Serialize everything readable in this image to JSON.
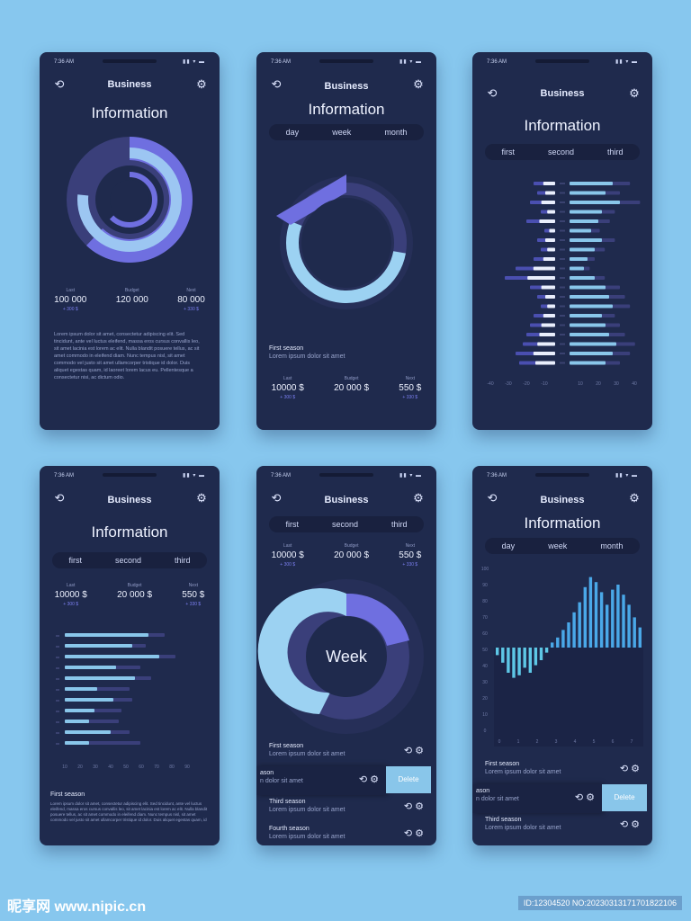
{
  "status": {
    "time": "7:36 AM",
    "icons": "▮▮ ▾ ▬"
  },
  "header": {
    "title": "Business"
  },
  "common": {
    "title": "Information"
  },
  "stats_a": {
    "labels": [
      "Last",
      "Budget",
      "Next"
    ],
    "values": [
      "100 000",
      "120 000",
      "80 000"
    ],
    "changes": [
      "+ 300 $",
      "",
      "+ 330 $"
    ]
  },
  "stats_b": {
    "labels": [
      "Last",
      "Budget",
      "Next"
    ],
    "values": [
      "10000 $",
      "20 000 $",
      "550 $"
    ],
    "changes": [
      "+ 300 $",
      "",
      "+ 330 $"
    ]
  },
  "tabs_time": [
    "day",
    "week",
    "month"
  ],
  "tabs_order": [
    "first",
    "second",
    "third"
  ],
  "paragraph": "Lorem ipsum dolor sit amet, consectetur adipiscing elit. Sed tincidunt, ante vel luctus eleifend, massa eros cursus convallis leo, sit amet lacinia est lorem ac elit. Nulla blandit posuere tellus, ac sit amet commodo in eleifend diam. Nunc tempus nisl, sit amet commodo vel justo sit amet ullamcorper tristique id dolor. Duis aliquet egestas quam, id laoreet lorem lacus eu. Pellentesque a consectetur nisi, ac dictum odio.",
  "season": {
    "first": "First season",
    "second": "Second season",
    "third": "Third season",
    "fourth": "Fourth season",
    "sub": "Lorem ipsum dolor sit amet",
    "swiped_title": "ason",
    "swiped_sub": "n dolor sit amet",
    "swiped_sub2": "n dolor sit amet"
  },
  "delete_label": "Delete",
  "donut_center": "Week",
  "colors": {
    "bg": "#87c7ee",
    "phone": "#1f2a4d",
    "accent_purple": "#6f6fe0",
    "accent_light": "#89c6ea",
    "dark_segment": "#3a3f7a"
  },
  "icons": {
    "history": "history-icon",
    "settings": "gear-icon"
  },
  "watermark": {
    "left": "昵享网 www.nipic.cn",
    "right": "ID:12304520 NO:20230313171701822106"
  },
  "chart_data": [
    {
      "type": "bar",
      "subtype": "diverging-horizontal",
      "title": "",
      "x_ticks_left": [
        "-40",
        "-30",
        "-20",
        "-10"
      ],
      "x_ticks_right": [
        "10",
        "20",
        "30",
        "40"
      ],
      "series": [
        {
          "values_left": [
            -12,
            -10,
            -14,
            -8,
            -16,
            -6,
            -10,
            -8,
            -12,
            -22,
            -28,
            -14,
            -10,
            -8,
            -12,
            -14,
            -16,
            -18,
            -22,
            -20
          ]
        },
        {
          "values_right": [
            24,
            20,
            28,
            18,
            16,
            12,
            18,
            14,
            10,
            8,
            14,
            20,
            22,
            24,
            18,
            20,
            22,
            26,
            24,
            20
          ]
        }
      ]
    },
    {
      "type": "bar",
      "subtype": "horizontal",
      "x_ticks": [
        "10",
        "20",
        "30",
        "40",
        "50",
        "60",
        "70",
        "80",
        "90"
      ],
      "values": [
        62,
        50,
        70,
        38,
        52,
        24,
        36,
        22,
        18,
        34,
        18
      ],
      "shadow_values": [
        74,
        60,
        82,
        56,
        64,
        48,
        50,
        42,
        40,
        48,
        56
      ]
    },
    {
      "type": "bar",
      "subtype": "vertical-diverging",
      "y_ticks": [
        "100",
        "90",
        "80",
        "70",
        "60",
        "50",
        "40",
        "30",
        "20",
        "10",
        "0"
      ],
      "x_ticks": [
        "0",
        "1",
        "2",
        "3",
        "4",
        "5",
        "6",
        "7"
      ],
      "values": [
        -6,
        -12,
        -20,
        -24,
        -22,
        -16,
        -20,
        -14,
        -10,
        -4,
        4,
        8,
        14,
        20,
        28,
        36,
        48,
        56,
        52,
        44,
        34,
        46,
        50,
        42,
        34,
        24,
        16
      ]
    }
  ]
}
